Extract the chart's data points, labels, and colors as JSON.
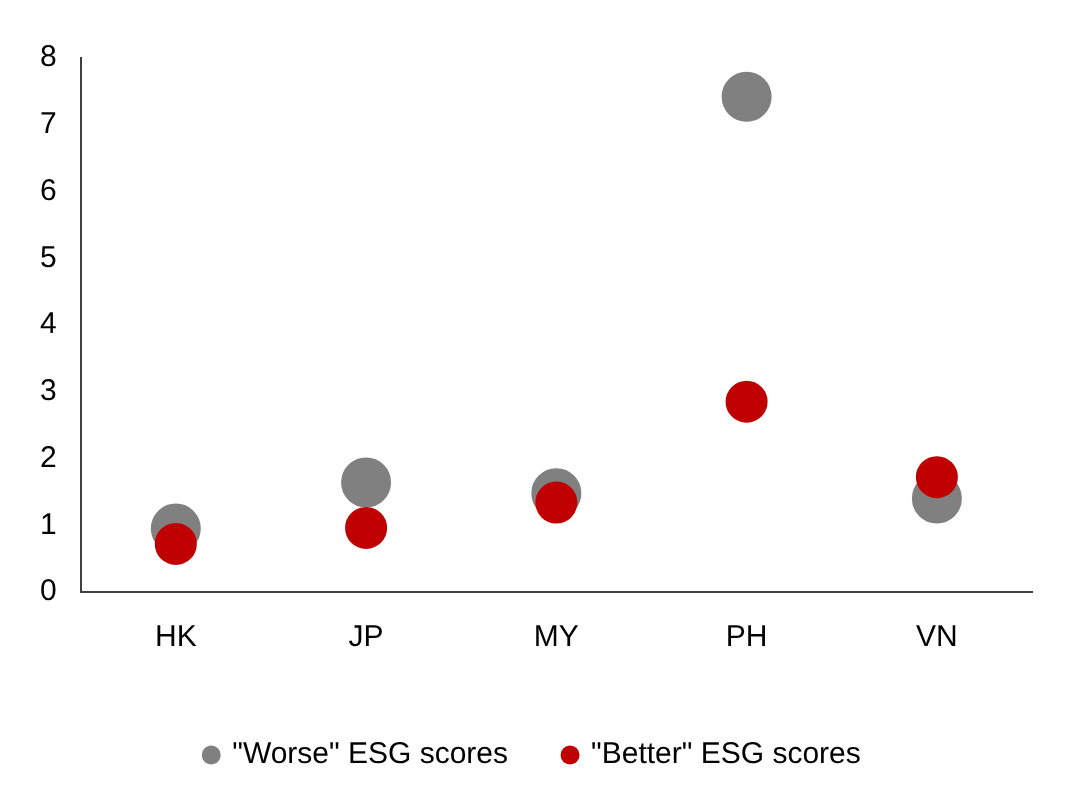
{
  "chart_data": {
    "type": "scatter",
    "categories": [
      "HK",
      "JP",
      "MY",
      "PH",
      "VN"
    ],
    "series": [
      {
        "name": "\"Worse\" ESG scores",
        "color": "#808080",
        "values": [
          0.95,
          1.64,
          1.48,
          7.42,
          1.4
        ]
      },
      {
        "name": "\"Better\" ESG scores",
        "color": "#c00000",
        "values": [
          0.72,
          0.96,
          1.34,
          2.85,
          1.72
        ]
      }
    ],
    "ylim": [
      0,
      8
    ],
    "yticks": [
      0,
      1,
      2,
      3,
      4,
      5,
      6,
      7,
      8
    ],
    "grid": false,
    "legend": "bottom",
    "marker": "circle"
  }
}
